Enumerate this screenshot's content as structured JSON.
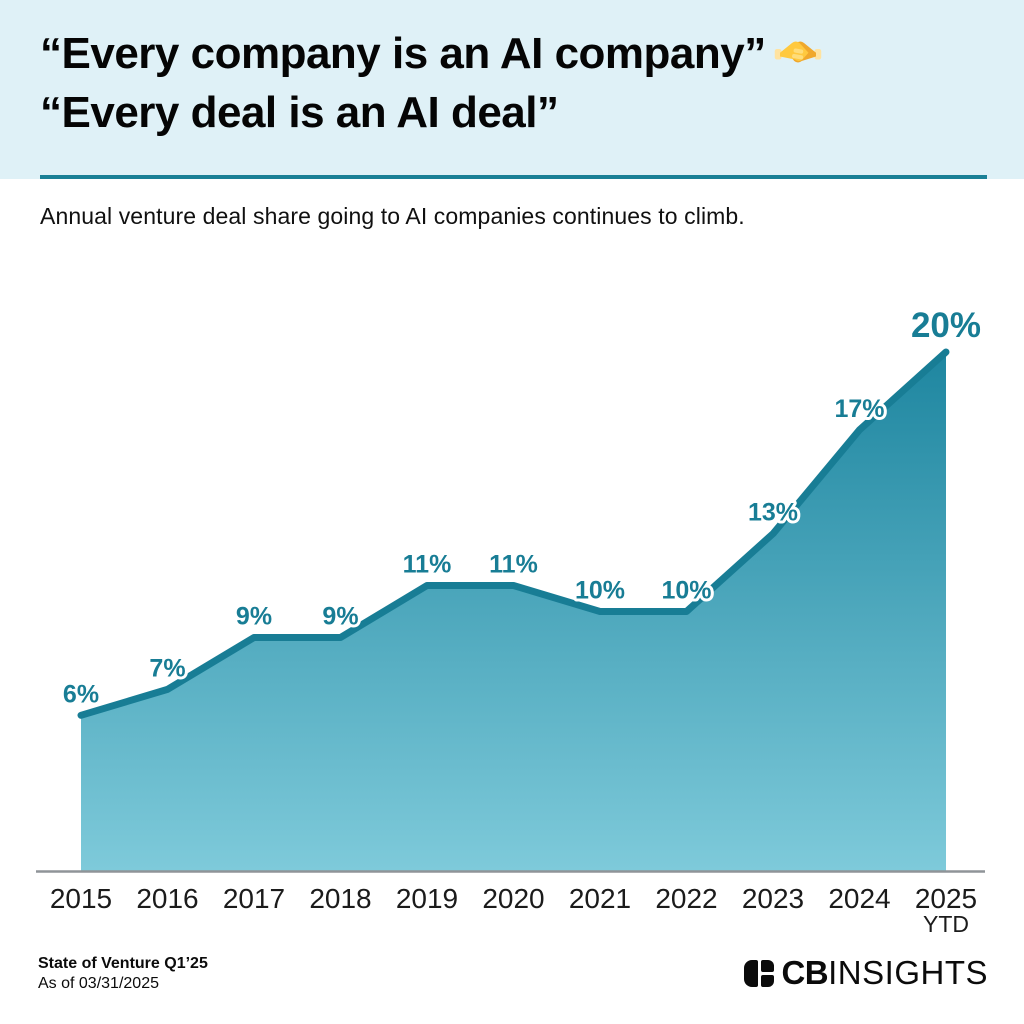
{
  "header": {
    "title_line1": "“Every company is an AI company”",
    "title_emoji": "🤝",
    "title_line2": "“Every deal is an AI deal”",
    "bg_color": "#DFF1F7",
    "divider_color": "#1A8096"
  },
  "subtitle": "Annual venture deal share going to AI companies continues to climb.",
  "chart_data": {
    "type": "area",
    "title": "Annual venture deal share going to AI companies continues to climb.",
    "categories": [
      "2015",
      "2016",
      "2017",
      "2018",
      "2019",
      "2020",
      "2021",
      "2022",
      "2023",
      "2024",
      "2025"
    ],
    "last_category_note": "YTD",
    "values": [
      6,
      7,
      9,
      9,
      11,
      11,
      10,
      10,
      13,
      17,
      20
    ],
    "labels": [
      "6%",
      "7%",
      "9%",
      "9%",
      "11%",
      "11%",
      "10%",
      "10%",
      "13%",
      "17%",
      "20%"
    ],
    "xlabel": "",
    "ylabel": "",
    "ylim": [
      0,
      21
    ],
    "grid": false,
    "legend": false,
    "line_color": "#187D95",
    "label_color": "#187D95",
    "fill_gradient_top": "#1E86A0",
    "fill_gradient_bottom": "#7ECADA",
    "axis_line_color": "#8F9498"
  },
  "footer": {
    "source_line1": "State of Venture Q1’25",
    "source_line2": "As of 03/31/2025",
    "logo_text_bold": "CB",
    "logo_text_light": "INSIGHTS"
  }
}
